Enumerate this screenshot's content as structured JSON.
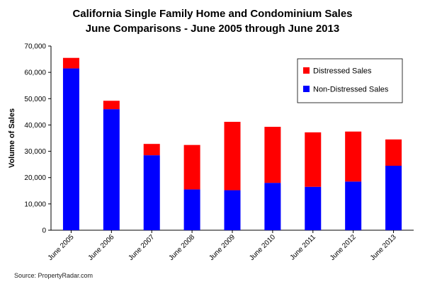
{
  "chart_data": {
    "type": "bar",
    "stacked": true,
    "title_line1": "California Single Family Home and Condominium Sales",
    "title_line2": "June Comparisons - June 2005 through June 2013",
    "ylabel": "Volume of Sales",
    "xlabel": "",
    "ylim": [
      0,
      70000
    ],
    "yticks": [
      0,
      10000,
      20000,
      30000,
      40000,
      50000,
      60000,
      70000
    ],
    "ytick_labels": [
      "0",
      "10,000",
      "20,000",
      "30,000",
      "40,000",
      "50,000",
      "60,000",
      "70,000"
    ],
    "categories": [
      "June 2005",
      "June 2006",
      "June 2007",
      "June 2008",
      "June 2009",
      "June 2010",
      "June 2011",
      "June 2012",
      "June 2013"
    ],
    "series": [
      {
        "name": "Non-Distressed Sales",
        "color": "#0000ff",
        "values": [
          61500,
          46000,
          28500,
          15500,
          15200,
          18000,
          16500,
          18500,
          24500
        ]
      },
      {
        "name": "Distressed Sales",
        "color": "#ff0000",
        "values": [
          4000,
          3200,
          4300,
          16900,
          26000,
          21300,
          20700,
          19000,
          10000
        ]
      }
    ],
    "legend": {
      "placement": "top-right",
      "order": [
        "Distressed Sales",
        "Non-Distressed Sales"
      ]
    },
    "grid": false,
    "source": "Source: PropertyRadar.com"
  }
}
